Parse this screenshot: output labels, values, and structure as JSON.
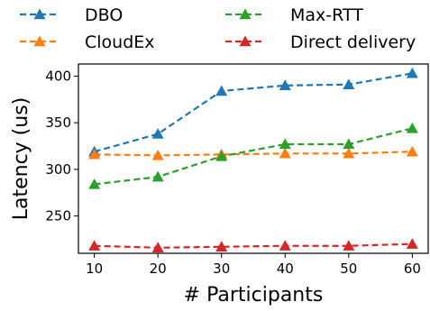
{
  "chart_data": {
    "type": "line",
    "title": "",
    "xlabel": "# Participants",
    "ylabel": "Latency (us)",
    "x": [
      10,
      20,
      30,
      40,
      50,
      60
    ],
    "xlim": [
      7.5,
      62.5
    ],
    "ylim": [
      210,
      413
    ],
    "xticks": [
      10,
      20,
      30,
      40,
      50,
      60
    ],
    "yticks": [
      250,
      300,
      350,
      400
    ],
    "grid": false,
    "legend": {
      "placement": "top, above plot",
      "columns": 2
    },
    "series": [
      {
        "name": "DBO",
        "color": "#1f77b4",
        "values": [
          319,
          338,
          384,
          390,
          391,
          403
        ]
      },
      {
        "name": "CloudEx",
        "color": "#ff7f0e",
        "values": [
          316,
          315,
          316,
          317,
          317,
          319
        ]
      },
      {
        "name": "Max-RTT",
        "color": "#2ca02c",
        "values": [
          284,
          292,
          314,
          327,
          327,
          344
        ]
      },
      {
        "name": "Direct delivery",
        "color": "#d62728",
        "values": [
          218,
          216,
          217,
          218,
          218,
          220
        ]
      }
    ],
    "line_style": "dashed",
    "marker": "triangle"
  }
}
